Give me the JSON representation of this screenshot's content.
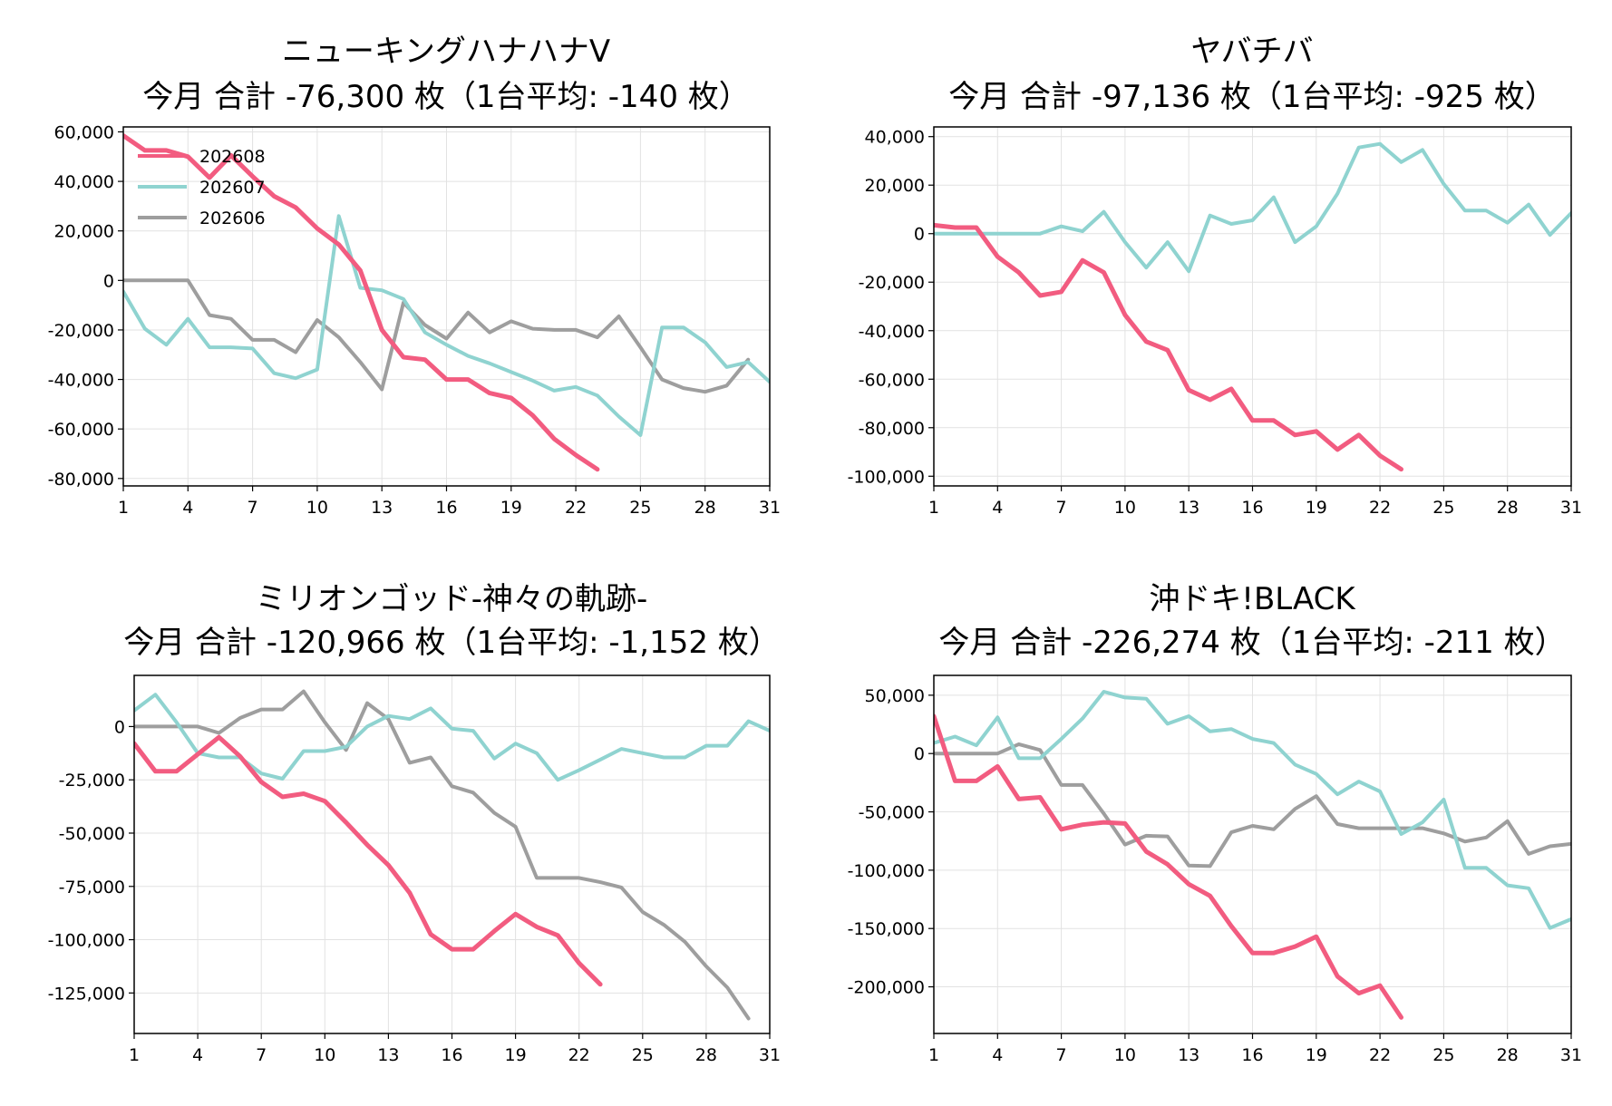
{
  "colors": {
    "s202608": "#f25c80",
    "s202607": "#8fd3d0",
    "s202606": "#9e9e9e"
  },
  "chart_data": [
    {
      "type": "line",
      "title": "ニューキングハナハナV",
      "subtitle": "今月 合計 -76,300 枚（1台平均: -140 枚）",
      "xticks": [
        "1",
        "4",
        "7",
        "10",
        "13",
        "16",
        "19",
        "22",
        "25",
        "28",
        "31"
      ],
      "yticks": [
        "60,000",
        "40,000",
        "20,000",
        "0",
        "-20,000",
        "-40,000",
        "-60,000",
        "-80,000"
      ],
      "xlim": [
        1,
        31
      ],
      "ylim": [
        -83000,
        62000
      ],
      "grid": true,
      "legend": "top-left",
      "series": [
        {
          "name": "202608",
          "color": "#f25c80",
          "values": [
            58500,
            52500,
            52500,
            50000,
            41500,
            50500,
            42000,
            34000,
            29500,
            21000,
            14500,
            4000,
            -20000,
            -31000,
            -32000,
            -40000,
            -40000,
            -45500,
            -47500,
            -54500,
            -64000,
            -70500,
            -76300
          ]
        },
        {
          "name": "202607",
          "color": "#8fd3d0",
          "values": [
            -4500,
            -19500,
            -26000,
            -15500,
            -27000,
            -27000,
            -27500,
            -37500,
            -39500,
            -36000,
            26000,
            -3000,
            -4000,
            -7500,
            -21000,
            -26000,
            -30500,
            -33500,
            -37000,
            -40500,
            -44500,
            -43000,
            -46500,
            -55000,
            -62500,
            -19000,
            -19000,
            -25000,
            -35000,
            -33000,
            -41000
          ]
        },
        {
          "name": "202606",
          "color": "#9e9e9e",
          "values": [
            0,
            0,
            0,
            0,
            -14000,
            -15500,
            -24000,
            -24000,
            -29000,
            -16000,
            -23000,
            -33000,
            -44000,
            -9000,
            -18000,
            -23500,
            -13000,
            -21000,
            -16500,
            -19500,
            -20000,
            -20000,
            -23000,
            -14500,
            -27000,
            -40000,
            -43500,
            -45000,
            -42500,
            -32000
          ]
        }
      ]
    },
    {
      "type": "line",
      "title": "ヤバチバ",
      "subtitle": "今月 合計 -97,136 枚（1台平均: -925 枚）",
      "xticks": [
        "1",
        "4",
        "7",
        "10",
        "13",
        "16",
        "19",
        "22",
        "25",
        "28",
        "31"
      ],
      "yticks": [
        "40,000",
        "20,000",
        "0",
        "-20,000",
        "-40,000",
        "-60,000",
        "-80,000",
        "-100,000"
      ],
      "xlim": [
        1,
        31
      ],
      "ylim": [
        -104000,
        44000
      ],
      "grid": true,
      "series": [
        {
          "name": "202608",
          "color": "#f25c80",
          "values": [
            3500,
            2500,
            2500,
            -9500,
            -16000,
            -25500,
            -24000,
            -11000,
            -16000,
            -33500,
            -44500,
            -48000,
            -64500,
            -68500,
            -64000,
            -77000,
            -77000,
            -83000,
            -81500,
            -89000,
            -83000,
            -91500,
            -97136
          ]
        },
        {
          "name": "202607",
          "color": "#8fd3d0",
          "values": [
            0,
            0,
            0,
            0,
            0,
            0,
            3000,
            1000,
            9000,
            -3500,
            -14000,
            -3500,
            -15500,
            7500,
            4000,
            5500,
            15000,
            -3500,
            3000,
            16500,
            35500,
            37000,
            29500,
            34500,
            20500,
            9500,
            9500,
            4500,
            12000,
            -500,
            8500
          ]
        }
      ]
    },
    {
      "type": "line",
      "title": "ミリオンゴッド-神々の軌跡-",
      "subtitle": "今月 合計 -120,966 枚（1台平均: -1,152 枚）",
      "xticks": [
        "1",
        "4",
        "7",
        "10",
        "13",
        "16",
        "19",
        "22",
        "25",
        "28",
        "31"
      ],
      "yticks": [
        "0",
        "-25,000",
        "-50,000",
        "-75,000",
        "-100,000",
        "-125,000"
      ],
      "xlim": [
        1,
        31
      ],
      "ylim": [
        -144000,
        24000
      ],
      "grid": true,
      "series": [
        {
          "name": "202608",
          "color": "#f25c80",
          "values": [
            -8000,
            -21000,
            -21000,
            -13000,
            -5000,
            -14000,
            -26000,
            -33000,
            -31500,
            -35000,
            -45000,
            -55500,
            -65000,
            -78000,
            -97500,
            -104500,
            -104500,
            -96000,
            -88000,
            -94000,
            -98000,
            -111000,
            -120966
          ]
        },
        {
          "name": "202607",
          "color": "#8fd3d0",
          "values": [
            7500,
            15000,
            2000,
            -12500,
            -14500,
            -14500,
            -22000,
            -24500,
            -11500,
            -11500,
            -9500,
            0,
            5000,
            3500,
            8500,
            -1000,
            -2000,
            -15000,
            -8000,
            -12500,
            -25000,
            -20500,
            -15500,
            -10500,
            -12500,
            -14500,
            -14500,
            -9000,
            -9000,
            2500,
            -2000
          ]
        },
        {
          "name": "202606",
          "color": "#9e9e9e",
          "values": [
            0,
            0,
            0,
            0,
            -3000,
            4000,
            8000,
            8000,
            16500,
            2000,
            -11000,
            11000,
            3500,
            -17000,
            -14500,
            -28000,
            -31000,
            -40500,
            -47000,
            -71000,
            -71000,
            -71000,
            -73000,
            -75500,
            -87000,
            -93000,
            -101000,
            -112500,
            -122500,
            -137000
          ]
        }
      ]
    },
    {
      "type": "line",
      "title": "沖ドキ!BLACK",
      "subtitle": "今月 合計 -226,274 枚（1台平均: -211 枚）",
      "xticks": [
        "1",
        "4",
        "7",
        "10",
        "13",
        "16",
        "19",
        "22",
        "25",
        "28",
        "31"
      ],
      "yticks": [
        "50,000",
        "0",
        "-50,000",
        "-100,000",
        "-150,000",
        "-200,000"
      ],
      "xlim": [
        1,
        31
      ],
      "ylim": [
        -240000,
        67000
      ],
      "grid": true,
      "series": [
        {
          "name": "202608",
          "color": "#f25c80",
          "values": [
            32000,
            -23500,
            -23500,
            -11000,
            -39000,
            -37500,
            -65000,
            -61000,
            -59000,
            -60000,
            -84000,
            -95000,
            -112000,
            -122000,
            -148000,
            -171000,
            -171000,
            -165500,
            -157000,
            -191000,
            -205500,
            -199000,
            -226274
          ]
        },
        {
          "name": "202607",
          "color": "#8fd3d0",
          "values": [
            9000,
            14500,
            7000,
            31000,
            -4000,
            -4000,
            12500,
            30000,
            53000,
            48000,
            47000,
            25500,
            32000,
            19000,
            21000,
            12500,
            9000,
            -9500,
            -17500,
            -35000,
            -24000,
            -32500,
            -69000,
            -59000,
            -39500,
            -98000,
            -98000,
            -113000,
            -115500,
            -149500,
            -142000
          ]
        },
        {
          "name": "202606",
          "color": "#9e9e9e",
          "values": [
            0,
            0,
            0,
            0,
            8000,
            3000,
            -27000,
            -27000,
            -51500,
            -78000,
            -70500,
            -71000,
            -96000,
            -96500,
            -67500,
            -62000,
            -65000,
            -47500,
            -36500,
            -60500,
            -64000,
            -64000,
            -64000,
            -64000,
            -68500,
            -75500,
            -72000,
            -58000,
            -86000,
            -79500,
            -77500
          ]
        }
      ]
    }
  ]
}
